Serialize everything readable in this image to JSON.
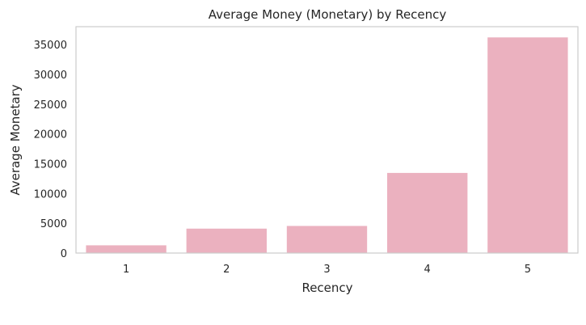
{
  "chart_data": {
    "type": "bar",
    "title": "Average Money (Monetary) by Recency",
    "xlabel": "Recency",
    "ylabel": "Average Monetary",
    "categories": [
      "1",
      "2",
      "3",
      "4",
      "5"
    ],
    "values": [
      1300,
      4100,
      4550,
      13450,
      36200
    ],
    "ylim": [
      0,
      38000
    ],
    "yticks": [
      0,
      5000,
      10000,
      15000,
      20000,
      25000,
      30000,
      35000
    ],
    "grid": false,
    "bar_color": "#ebb1bf",
    "frame_color": "#cccccc"
  }
}
